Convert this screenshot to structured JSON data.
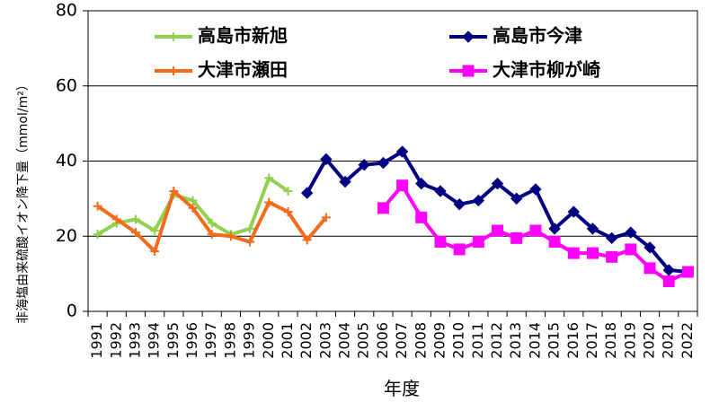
{
  "chart_data": {
    "type": "line",
    "xlabel": "年度",
    "ylabel": "非海塩由来硫酸イオン降下量（mmol/m²）",
    "ylim": [
      0,
      80
    ],
    "yticks": [
      0,
      20,
      40,
      60,
      80
    ],
    "grid": "horizontal",
    "legend_placement": "top",
    "categories": [
      "1991",
      "1992",
      "1993",
      "1994",
      "1995",
      "1996",
      "1997",
      "1998",
      "1999",
      "2000",
      "2001",
      "2002",
      "2003",
      "2004",
      "2005",
      "2006",
      "2007",
      "2008",
      "2009",
      "2010",
      "2011",
      "2012",
      "2013",
      "2014",
      "2015",
      "2016",
      "2017",
      "2018",
      "2019",
      "2020",
      "2021",
      "2022"
    ],
    "series": [
      {
        "name": "高島市新旭",
        "color": "#92d050",
        "marker": "plus",
        "values": [
          20.5,
          23.5,
          24.5,
          21.5,
          31,
          29.5,
          23.5,
          20.5,
          22,
          35.5,
          32,
          null,
          null,
          null,
          null,
          null,
          null,
          null,
          null,
          null,
          null,
          null,
          null,
          null,
          null,
          null,
          null,
          null,
          null,
          null,
          null,
          null
        ]
      },
      {
        "name": "高島市今津",
        "color": "#000080",
        "marker": "diamond",
        "values": [
          null,
          null,
          null,
          null,
          null,
          null,
          null,
          null,
          null,
          null,
          null,
          31.5,
          40.5,
          34.5,
          39,
          39.5,
          42.5,
          34,
          32,
          28.5,
          29.5,
          34,
          30,
          32.5,
          22,
          26.5,
          22,
          19.5,
          21,
          17,
          11,
          10.5
        ]
      },
      {
        "name": "大津市瀬田",
        "color": "#f26c1c",
        "marker": "plus",
        "values": [
          28,
          24.5,
          21,
          16,
          32,
          27.5,
          20.5,
          20,
          18.5,
          29,
          26.5,
          19,
          25,
          null,
          null,
          null,
          null,
          null,
          null,
          null,
          null,
          null,
          null,
          null,
          null,
          null,
          null,
          null,
          null,
          null,
          null,
          null
        ]
      },
      {
        "name": "大津市柳が崎",
        "color": "#ff00ff",
        "marker": "square",
        "values": [
          null,
          null,
          null,
          null,
          null,
          null,
          null,
          null,
          null,
          null,
          null,
          null,
          null,
          null,
          null,
          27.5,
          33.5,
          25,
          18.5,
          16.5,
          18.5,
          21.5,
          19.5,
          21.5,
          18.5,
          15.5,
          15.5,
          14.5,
          16.5,
          11.5,
          8,
          10.5
        ]
      }
    ]
  }
}
